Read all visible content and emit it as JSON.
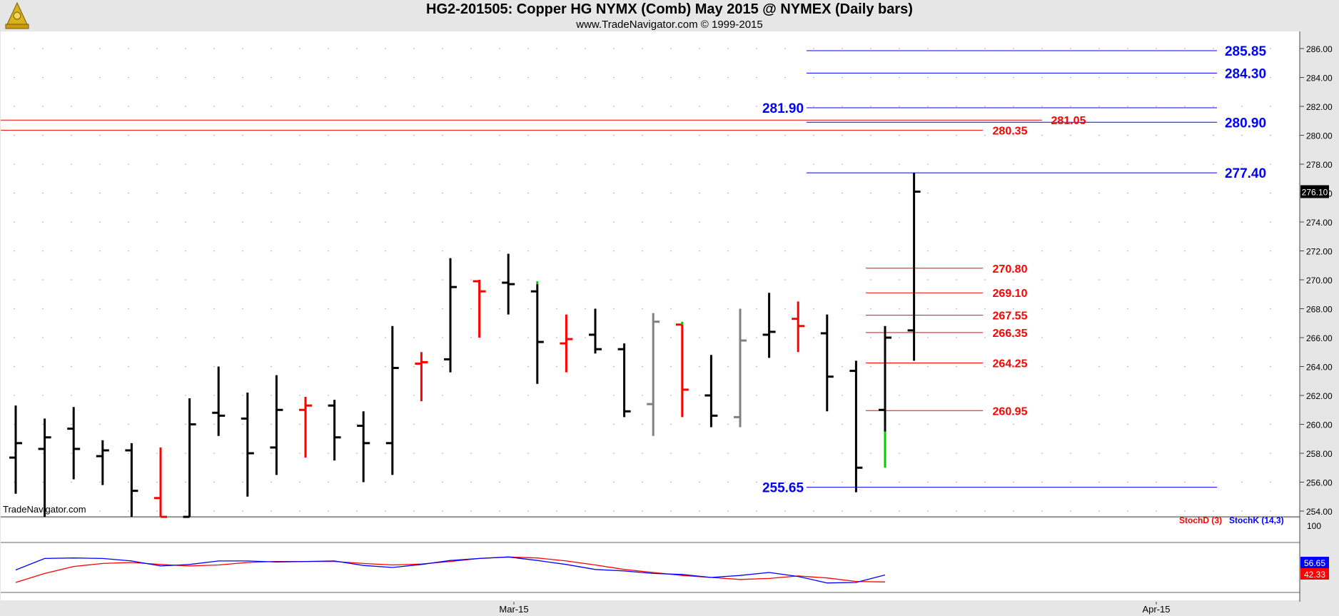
{
  "header": {
    "title": "HG2-201505:  Copper HG NYMX (Comb) May 2015 @ NYMEX  (Daily bars)",
    "subtitle": "www.TradeNavigator.com © 1999-2015"
  },
  "watermark": "TradeNavigator.com",
  "indicator_labels": {
    "stochd": "StochD (3)",
    "stochk": "StochK (14,3)"
  },
  "colors": {
    "up": "#ff0000",
    "down": "#000000",
    "blue_level": "#0000ff",
    "red_level": "#ff0000",
    "gray_bar": "#808080",
    "green_bar": "#00cc00",
    "background": "#ffffff",
    "panel": "#e6e6e6"
  },
  "chart_data": [
    {
      "type": "ohlc",
      "title": "HG2-201505:  Copper HG NYMX (Comb) May 2015 @ NYMEX  (Daily bars)",
      "ylim": [
        253.5,
        286.8
      ],
      "y_ticks": [
        "254.00",
        "256.00",
        "258.00",
        "260.00",
        "262.00",
        "264.00",
        "266.00",
        "268.00",
        "270.00",
        "272.00",
        "274.00",
        "276.00",
        "278.00",
        "280.00",
        "282.00",
        "284.00",
        "286.00"
      ],
      "x_ticks": [
        "Mar-15",
        "Apr-15"
      ],
      "last_price": "276.10",
      "bars": [
        {
          "o": 257.7,
          "h": 261.3,
          "l": 255.2,
          "c": 258.7,
          "color": "black"
        },
        {
          "o": 258.3,
          "h": 260.4,
          "l": 253.6,
          "c": 259.1,
          "color": "black"
        },
        {
          "o": 259.7,
          "h": 261.2,
          "l": 256.2,
          "c": 258.3,
          "color": "black"
        },
        {
          "o": 257.8,
          "h": 258.9,
          "l": 255.8,
          "c": 258.2,
          "color": "black"
        },
        {
          "o": 258.2,
          "h": 258.7,
          "l": 253.6,
          "c": 255.4,
          "color": "black"
        },
        {
          "o": 254.9,
          "h": 258.4,
          "l": 253.6,
          "c": 253.6,
          "color": "red"
        },
        {
          "o": 253.6,
          "h": 261.8,
          "l": 253.6,
          "c": 260.0,
          "color": "black"
        },
        {
          "o": 260.8,
          "h": 264.0,
          "l": 259.2,
          "c": 260.6,
          "color": "black"
        },
        {
          "o": 260.4,
          "h": 262.2,
          "l": 255.0,
          "c": 258.0,
          "color": "black"
        },
        {
          "o": 258.4,
          "h": 263.4,
          "l": 256.5,
          "c": 261.0,
          "color": "black"
        },
        {
          "o": 261.0,
          "h": 261.9,
          "l": 257.7,
          "c": 261.3,
          "color": "red"
        },
        {
          "o": 261.3,
          "h": 261.7,
          "l": 257.5,
          "c": 259.1,
          "color": "black"
        },
        {
          "o": 259.9,
          "h": 260.9,
          "l": 256.0,
          "c": 258.7,
          "color": "black"
        },
        {
          "o": 258.7,
          "h": 266.8,
          "l": 256.5,
          "c": 263.9,
          "color": "black"
        },
        {
          "o": 264.2,
          "h": 265.0,
          "l": 261.6,
          "c": 264.3,
          "color": "red"
        },
        {
          "o": 264.5,
          "h": 271.5,
          "l": 263.6,
          "c": 269.5,
          "color": "black"
        },
        {
          "o": 269.9,
          "h": 270.0,
          "l": 266.0,
          "c": 269.2,
          "color": "red"
        },
        {
          "o": 269.8,
          "h": 271.8,
          "l": 267.6,
          "c": 269.7,
          "color": "black"
        },
        {
          "o": 269.2,
          "h": 269.7,
          "l": 262.8,
          "c": 265.7,
          "color": "black",
          "green_tail": [
            269.7,
            269.9
          ]
        },
        {
          "o": 265.6,
          "h": 267.6,
          "l": 263.6,
          "c": 265.9,
          "color": "red"
        },
        {
          "o": 266.2,
          "h": 268.0,
          "l": 264.9,
          "c": 265.2,
          "color": "black"
        },
        {
          "o": 265.2,
          "h": 265.6,
          "l": 260.5,
          "c": 260.9,
          "color": "black"
        },
        {
          "o": 261.4,
          "h": 267.7,
          "l": 259.2,
          "c": 267.1,
          "color": "gray"
        },
        {
          "o": 266.9,
          "h": 266.9,
          "l": 260.5,
          "c": 262.4,
          "color": "red",
          "green_tail": [
            266.9,
            267.1
          ]
        },
        {
          "o": 262.0,
          "h": 264.8,
          "l": 259.8,
          "c": 260.6,
          "color": "black"
        },
        {
          "o": 260.5,
          "h": 268.0,
          "l": 259.8,
          "c": 265.8,
          "color": "gray"
        },
        {
          "o": 266.2,
          "h": 269.1,
          "l": 264.6,
          "c": 266.4,
          "color": "black"
        },
        {
          "o": 267.3,
          "h": 268.5,
          "l": 265.0,
          "c": 266.8,
          "color": "red"
        },
        {
          "o": 266.3,
          "h": 267.6,
          "l": 260.9,
          "c": 263.3,
          "color": "black"
        },
        {
          "o": 263.7,
          "h": 264.4,
          "l": 255.3,
          "c": 257.0,
          "color": "black"
        },
        {
          "o": 261.0,
          "h": 266.8,
          "l": 259.5,
          "c": 266.0,
          "color": "black",
          "green_tail": [
            257.0,
            259.5
          ]
        },
        {
          "o": 266.5,
          "h": 277.4,
          "l": 264.4,
          "c": 276.1,
          "color": "black"
        }
      ],
      "levels_blue": [
        {
          "value": 285.85,
          "label": "285.85"
        },
        {
          "value": 284.3,
          "label": "284.30"
        },
        {
          "value": 281.9,
          "label": "281.90"
        },
        {
          "value": 280.9,
          "label": "280.90"
        },
        {
          "value": 277.4,
          "label": "277.40"
        },
        {
          "value": 255.65,
          "label": "255.65"
        }
      ],
      "levels_red": [
        {
          "value": 281.05,
          "label": "281.05"
        },
        {
          "value": 280.35,
          "label": "280.35"
        },
        {
          "value": 270.8,
          "label": "270.80"
        },
        {
          "value": 269.1,
          "label": "269.10"
        },
        {
          "value": 267.55,
          "label": "267.55"
        },
        {
          "value": 266.35,
          "label": "266.35"
        },
        {
          "value": 264.25,
          "label": "264.25"
        },
        {
          "value": 260.95,
          "label": "260.95"
        }
      ]
    },
    {
      "type": "line",
      "ylim": [
        0,
        100
      ],
      "y_ticks": [
        "100"
      ],
      "series": [
        {
          "name": "StochD (3)",
          "color": "#ff0000",
          "last": "42.33",
          "values": [
            20,
            38,
            52,
            58,
            60,
            56,
            53,
            55,
            60,
            62,
            62,
            62,
            58,
            55,
            57,
            62,
            68,
            71,
            69,
            63,
            55,
            46,
            40,
            34,
            30,
            26,
            28,
            33,
            29,
            22,
            21
          ]
        },
        {
          "name": "StochK (14,3)",
          "color": "#0000ff",
          "last": "56.65",
          "values": [
            45,
            68,
            69,
            68,
            63,
            53,
            56,
            63,
            63,
            61,
            62,
            63,
            54,
            50,
            56,
            64,
            68,
            71,
            64,
            56,
            46,
            43,
            38,
            36,
            30,
            34,
            40,
            32,
            19,
            20,
            35
          ]
        }
      ]
    }
  ]
}
